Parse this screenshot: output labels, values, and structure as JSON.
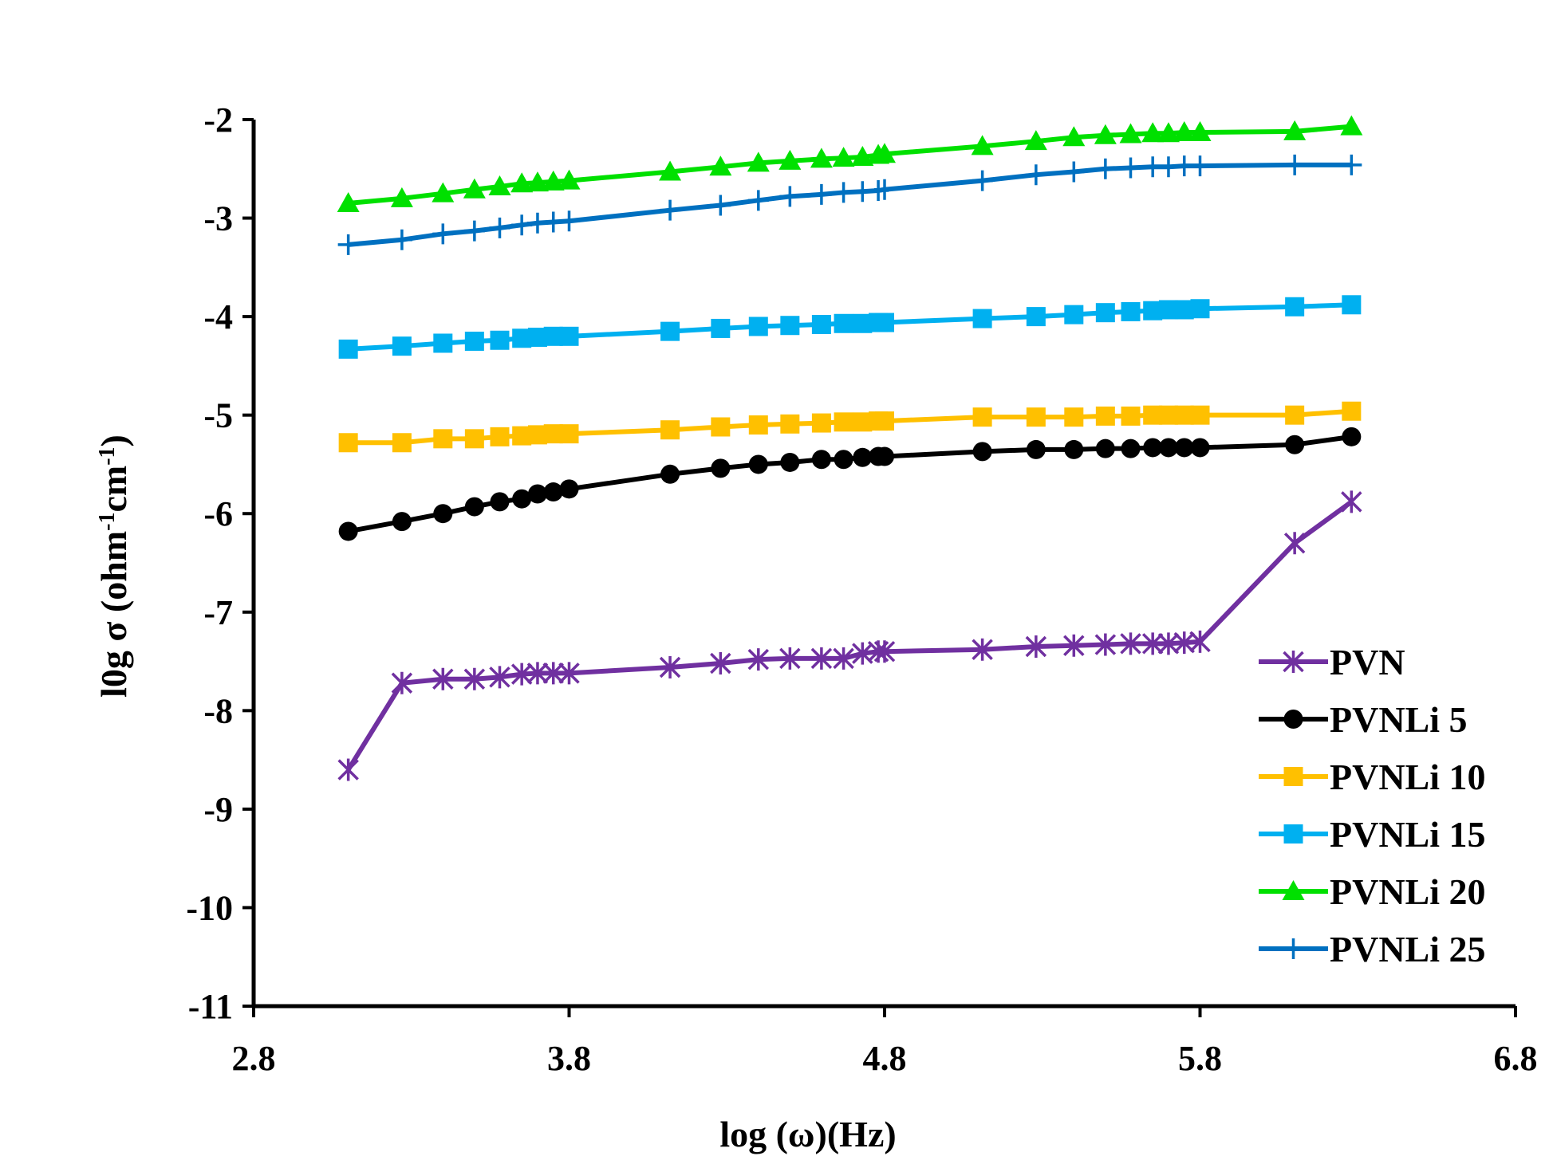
{
  "chart_data": {
    "type": "line",
    "title": "",
    "xlabel": "log (ω)(Hz)",
    "ylabel_prefix": "l0g σ (ohm",
    "ylabel_sup1": "-1",
    "ylabel_mid": "cm",
    "ylabel_sup2": "-1",
    "ylabel_suffix": ")",
    "xlim": [
      2.8,
      6.8
    ],
    "ylim": [
      -11,
      -2
    ],
    "x_ticks": [
      "2.8",
      "3.8",
      "4.8",
      "5.8",
      "6.8"
    ],
    "x_tick_values": [
      2.8,
      3.8,
      4.8,
      5.8,
      6.8
    ],
    "y_ticks": [
      "-2",
      "-3",
      "-4",
      "-5",
      "-6",
      "-7",
      "-8",
      "-9",
      "-10",
      "-11"
    ],
    "y_tick_values": [
      -2,
      -3,
      -4,
      -5,
      -6,
      -7,
      -8,
      -9,
      -10,
      -11
    ],
    "grid": false,
    "legend_position": "bottom-right",
    "x": [
      3.1,
      3.27,
      3.4,
      3.5,
      3.58,
      3.65,
      3.7,
      3.75,
      3.8,
      4.12,
      4.28,
      4.4,
      4.5,
      4.6,
      4.67,
      4.73,
      4.78,
      4.8,
      5.11,
      5.28,
      5.4,
      5.5,
      5.58,
      5.65,
      5.7,
      5.75,
      5.8,
      6.1,
      6.28
    ],
    "series": [
      {
        "name": "PVN",
        "color": "#7030a0",
        "marker": "asterisk",
        "values": [
          -8.6,
          -7.72,
          -7.68,
          -7.68,
          -7.66,
          -7.63,
          -7.62,
          -7.62,
          -7.62,
          -7.56,
          -7.52,
          -7.48,
          -7.47,
          -7.47,
          -7.47,
          -7.42,
          -7.4,
          -7.4,
          -7.38,
          -7.35,
          -7.34,
          -7.33,
          -7.32,
          -7.32,
          -7.32,
          -7.31,
          -7.3,
          -6.3,
          -5.88
        ]
      },
      {
        "name": "PVNLi 5",
        "color": "#000000",
        "marker": "circle",
        "values": [
          -6.18,
          -6.08,
          -6.0,
          -5.93,
          -5.88,
          -5.85,
          -5.8,
          -5.78,
          -5.75,
          -5.6,
          -5.54,
          -5.5,
          -5.48,
          -5.45,
          -5.45,
          -5.43,
          -5.42,
          -5.42,
          -5.37,
          -5.35,
          -5.35,
          -5.34,
          -5.34,
          -5.33,
          -5.33,
          -5.33,
          -5.33,
          -5.3,
          -5.22
        ]
      },
      {
        "name": "PVNLi 10",
        "color": "#ffc000",
        "marker": "square",
        "values": [
          -5.28,
          -5.28,
          -5.24,
          -5.24,
          -5.22,
          -5.21,
          -5.2,
          -5.19,
          -5.19,
          -5.15,
          -5.12,
          -5.1,
          -5.09,
          -5.08,
          -5.07,
          -5.07,
          -5.06,
          -5.06,
          -5.02,
          -5.02,
          -5.02,
          -5.01,
          -5.01,
          -5.0,
          -5.0,
          -5.0,
          -5.0,
          -5.0,
          -4.96
        ]
      },
      {
        "name": "PVNLi 15",
        "color": "#00b0f0",
        "marker": "square",
        "values": [
          -4.33,
          -4.3,
          -4.27,
          -4.25,
          -4.24,
          -4.22,
          -4.21,
          -4.2,
          -4.2,
          -4.15,
          -4.12,
          -4.1,
          -4.09,
          -4.08,
          -4.07,
          -4.07,
          -4.06,
          -4.06,
          -4.02,
          -4.0,
          -3.98,
          -3.96,
          -3.95,
          -3.94,
          -3.93,
          -3.93,
          -3.92,
          -3.9,
          -3.88
        ]
      },
      {
        "name": "PVNLi 20",
        "color": "#00e000",
        "marker": "triangle",
        "values": [
          -2.85,
          -2.8,
          -2.75,
          -2.71,
          -2.68,
          -2.65,
          -2.64,
          -2.63,
          -2.62,
          -2.53,
          -2.48,
          -2.44,
          -2.42,
          -2.4,
          -2.39,
          -2.38,
          -2.36,
          -2.35,
          -2.27,
          -2.22,
          -2.18,
          -2.16,
          -2.15,
          -2.14,
          -2.14,
          -2.13,
          -2.13,
          -2.12,
          -2.07
        ]
      },
      {
        "name": "PVNLi 25",
        "color": "#0070c0",
        "marker": "plus",
        "values": [
          -3.27,
          -3.22,
          -3.16,
          -3.13,
          -3.1,
          -3.07,
          -3.05,
          -3.04,
          -3.03,
          -2.92,
          -2.87,
          -2.82,
          -2.78,
          -2.76,
          -2.74,
          -2.73,
          -2.72,
          -2.71,
          -2.62,
          -2.56,
          -2.53,
          -2.5,
          -2.49,
          -2.48,
          -2.48,
          -2.47,
          -2.47,
          -2.46,
          -2.46
        ]
      }
    ]
  }
}
